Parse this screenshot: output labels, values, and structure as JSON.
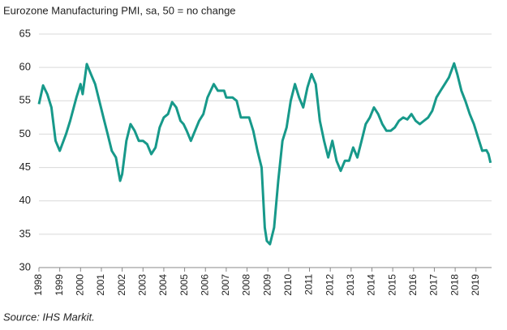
{
  "chart_data": {
    "type": "line",
    "title": "Eurozone Manufacturing PMI, sa, 50 = no change",
    "source": "Source: IHS Markit.",
    "color": "#17998a",
    "grid": true,
    "xlim": [
      1998,
      2019.75
    ],
    "ylim": [
      30,
      65
    ],
    "yticks": [
      30,
      35,
      40,
      45,
      50,
      55,
      60,
      65
    ],
    "xticks": [
      1998,
      1999,
      2000,
      2001,
      2002,
      2003,
      2004,
      2005,
      2006,
      2007,
      2008,
      2009,
      2010,
      2011,
      2012,
      2013,
      2014,
      2015,
      2016,
      2017,
      2018,
      2019
    ],
    "x": [
      1998.0,
      1998.2,
      1998.4,
      1998.6,
      1998.8,
      1999.0,
      1999.3,
      1999.5,
      1999.8,
      2000.0,
      2000.1,
      2000.3,
      2000.5,
      2000.7,
      2000.9,
      2001.1,
      2001.3,
      2001.5,
      2001.7,
      2001.9,
      2002.0,
      2002.2,
      2002.4,
      2002.6,
      2002.8,
      2003.0,
      2003.2,
      2003.4,
      2003.6,
      2003.8,
      2004.0,
      2004.2,
      2004.4,
      2004.6,
      2004.8,
      2004.95,
      2005.1,
      2005.3,
      2005.5,
      2005.7,
      2005.9,
      2006.1,
      2006.4,
      2006.6,
      2006.9,
      2007.0,
      2007.3,
      2007.5,
      2007.7,
      2007.9,
      2008.1,
      2008.3,
      2008.5,
      2008.7,
      2008.85,
      2008.95,
      2009.1,
      2009.3,
      2009.5,
      2009.7,
      2009.9,
      2010.1,
      2010.3,
      2010.5,
      2010.7,
      2010.9,
      2011.1,
      2011.3,
      2011.5,
      2011.7,
      2011.9,
      2012.1,
      2012.3,
      2012.5,
      2012.7,
      2012.9,
      2013.1,
      2013.3,
      2013.5,
      2013.7,
      2013.9,
      2014.1,
      2014.3,
      2014.5,
      2014.7,
      2014.9,
      2015.1,
      2015.3,
      2015.5,
      2015.7,
      2015.9,
      2016.1,
      2016.3,
      2016.5,
      2016.7,
      2016.9,
      2017.1,
      2017.3,
      2017.5,
      2017.7,
      2017.95,
      2018.1,
      2018.3,
      2018.5,
      2018.7,
      2018.9,
      2019.1,
      2019.3,
      2019.5,
      2019.6,
      2019.7
    ],
    "values": [
      54.5,
      57.3,
      56,
      54,
      49,
      47.5,
      50,
      52,
      55.5,
      57.5,
      56,
      60.5,
      59,
      57.5,
      55,
      52.5,
      50,
      47.5,
      46.5,
      43,
      44,
      49,
      51.5,
      50.5,
      49,
      49,
      48.5,
      47,
      48,
      51,
      52.5,
      53,
      54.8,
      54,
      52,
      51.5,
      50.5,
      49,
      50.5,
      52,
      53,
      55.5,
      57.5,
      56.5,
      56.5,
      55.5,
      55.5,
      55,
      52.5,
      52.5,
      52.5,
      50.5,
      47.5,
      45,
      36,
      34,
      33.5,
      36,
      43,
      49,
      51,
      55,
      57.5,
      55.5,
      54,
      57,
      59,
      57.5,
      52,
      49,
      46.5,
      49,
      46,
      44.5,
      46,
      46,
      48,
      46.5,
      49,
      51.5,
      52.5,
      54,
      53,
      51.5,
      50.5,
      50.5,
      51,
      52,
      52.5,
      52.2,
      53,
      52,
      51.5,
      52,
      52.5,
      53.5,
      55.5,
      56.5,
      57.5,
      58.5,
      60.6,
      59,
      56.5,
      54.9,
      53,
      51.5,
      49.5,
      47.5,
      47.6,
      47,
      45.7
    ]
  }
}
